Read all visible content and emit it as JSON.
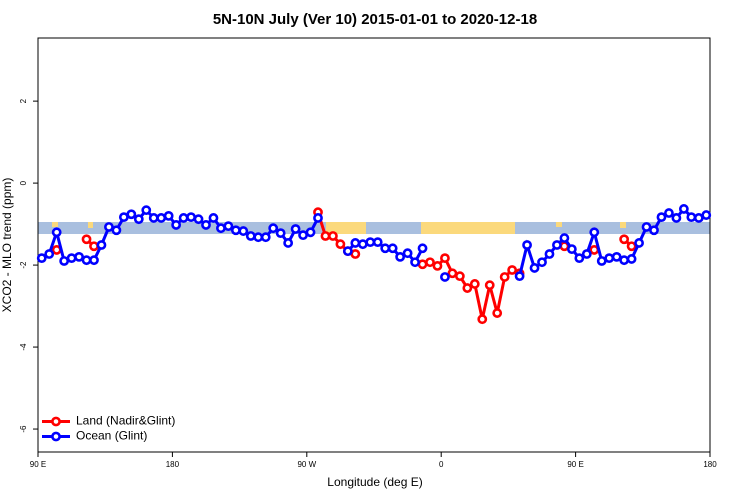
{
  "chart_data": {
    "type": "line",
    "title": "5N-10N July (Ver 10)   2015-01-01 to 2020-12-18",
    "xlabel": "Longitude (deg E)",
    "ylabel": "XCO2 - MLO trend (ppm)",
    "x": [
      92.5,
      97.5,
      102.5,
      107.5,
      112.5,
      117.5,
      122.5,
      127.5,
      132.5,
      137.5,
      142.5,
      147.5,
      152.5,
      157.5,
      162.5,
      167.5,
      172.5,
      177.5,
      182.5,
      187.5,
      192.5,
      197.5,
      202.5,
      207.5,
      212.5,
      217.5,
      222.5,
      227.5,
      232.5,
      237.5,
      242.5,
      247.5,
      252.5,
      257.5,
      262.5,
      267.5,
      272.5,
      277.5,
      282.5,
      287.5,
      292.5,
      297.5,
      302.5,
      307.5,
      312.5,
      317.5,
      322.5,
      327.5,
      332.5,
      337.5,
      342.5,
      347.5,
      352.5,
      357.5,
      362.5,
      367.5,
      372.5,
      377.5,
      382.5,
      387.5,
      392.5,
      397.5,
      402.5,
      407.5,
      412.5,
      417.5,
      422.5,
      427.5,
      432.5,
      437.5,
      442.5,
      447.5,
      452.5,
      457.5,
      462.5,
      467.5,
      472.5,
      477.5,
      482.5,
      487.5,
      492.5,
      497.5,
      502.5,
      507.5,
      512.5,
      517.5,
      522.5,
      527.5,
      532.5,
      537.5
    ],
    "series": [
      {
        "name": "Land (Nadir&Glint)",
        "color": "#ff0000",
        "values": [
          null,
          null,
          -1.63,
          null,
          null,
          null,
          -1.37,
          -1.54,
          null,
          null,
          null,
          null,
          null,
          null,
          null,
          null,
          null,
          null,
          null,
          null,
          null,
          null,
          null,
          null,
          null,
          null,
          null,
          null,
          null,
          null,
          null,
          null,
          null,
          null,
          null,
          null,
          null,
          -0.71,
          -1.29,
          -1.29,
          -1.49,
          -1.66,
          -1.73,
          null,
          null,
          null,
          null,
          null,
          null,
          null,
          null,
          -1.98,
          -1.93,
          -2.02,
          -1.83,
          -2.2,
          -2.27,
          -2.56,
          -2.46,
          -3.32,
          -2.49,
          -3.17,
          -2.29,
          -2.12,
          -2.2,
          null,
          null,
          null,
          null,
          null,
          -1.54,
          null,
          null,
          null,
          -1.63,
          null,
          null,
          null,
          -1.37,
          -1.54,
          null,
          null,
          null,
          null,
          null,
          null,
          null,
          null,
          null,
          null
        ]
      },
      {
        "name": "Ocean (Glint)",
        "color": "#0000ff",
        "values": [
          -1.83,
          -1.73,
          -1.2,
          -1.9,
          -1.83,
          -1.8,
          -1.88,
          -1.88,
          -1.51,
          -1.07,
          -1.15,
          -0.83,
          -0.76,
          -0.88,
          -0.66,
          -0.85,
          -0.85,
          -0.8,
          -1.02,
          -0.85,
          -0.83,
          -0.88,
          -1.02,
          -0.85,
          -1.1,
          -1.05,
          -1.15,
          -1.17,
          -1.29,
          -1.32,
          -1.32,
          -1.1,
          -1.22,
          -1.46,
          -1.12,
          -1.27,
          -1.2,
          -0.85,
          null,
          null,
          null,
          -1.66,
          -1.46,
          -1.49,
          -1.44,
          -1.44,
          -1.59,
          -1.59,
          -1.8,
          -1.71,
          -1.93,
          -1.59,
          null,
          null,
          -2.29,
          null,
          null,
          null,
          null,
          null,
          null,
          null,
          null,
          null,
          -2.27,
          -1.51,
          -2.07,
          -1.93,
          -1.73,
          -1.51,
          -1.34,
          -1.61,
          -1.83,
          -1.73,
          -1.2,
          -1.9,
          -1.83,
          -1.8,
          -1.88,
          -1.85,
          -1.46,
          -1.07,
          -1.15,
          -0.83,
          -0.73,
          -0.85,
          -0.63,
          -0.83,
          -0.85,
          -0.78
        ]
      }
    ],
    "xlim": [
      90,
      540
    ],
    "xticks": [
      {
        "value": 90,
        "label": "90 E"
      },
      180,
      {
        "value": 270,
        "label": "90 W"
      },
      {
        "value": 360,
        "label": "0"
      },
      {
        "value": 450,
        "label": "90 E"
      },
      {
        "value": 540,
        "label": "180"
      }
    ],
    "ylim": [
      -6.56,
      3.54
    ],
    "yticks": [
      -6,
      -4,
      -2,
      0,
      2
    ],
    "legend": "bottomleft"
  }
}
